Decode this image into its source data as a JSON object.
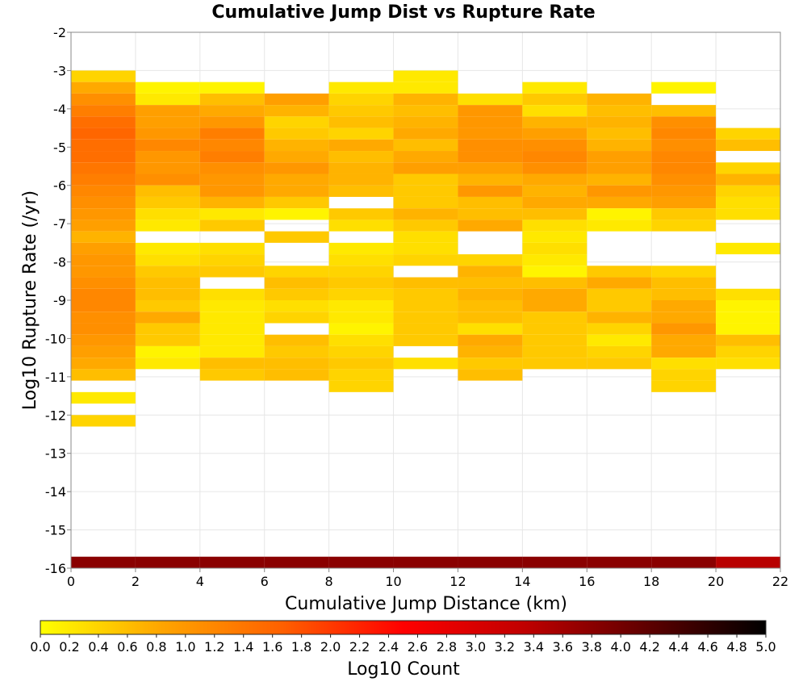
{
  "chart_data": {
    "type": "heatmap",
    "title": "Cumulative Jump Dist vs Rupture Rate",
    "xlabel": "Cumulative Jump Distance (km)",
    "ylabel": "Log10 Rupture Rate (/yr)",
    "colorbar_label": "Log10 Count",
    "xlim": [
      0,
      22
    ],
    "ylim": [
      -16,
      -2
    ],
    "x_ticks": [
      "0",
      "2",
      "4",
      "6",
      "8",
      "10",
      "12",
      "14",
      "16",
      "18",
      "20",
      "22"
    ],
    "y_ticks": [
      "-2",
      "-3",
      "-4",
      "-5",
      "-6",
      "-7",
      "-8",
      "-9",
      "-10",
      "-11",
      "-12",
      "-13",
      "-14",
      "-15",
      "-16"
    ],
    "colorbar_range": [
      0.0,
      5.0
    ],
    "colorbar_ticks": [
      "0.0",
      "0.2",
      "0.4",
      "0.6",
      "0.8",
      "1.0",
      "1.2",
      "1.4",
      "1.6",
      "1.8",
      "2.0",
      "2.2",
      "2.4",
      "2.6",
      "2.8",
      "3.0",
      "3.2",
      "3.4",
      "3.6",
      "3.8",
      "4.0",
      "4.2",
      "4.4",
      "4.6",
      "4.8",
      "5.0"
    ],
    "colorscale": [
      "#ffff00",
      "#ffa500",
      "#ff6000",
      "#ff0000",
      "#c00000",
      "#600000",
      "#000000"
    ],
    "x_bin_width": 2,
    "y_bin_height": 0.3,
    "grid": true,
    "columns": [
      {
        "x0": 0,
        "cells": [
          [
            -3.3,
            0.4
          ],
          [
            -3.6,
            0.8
          ],
          [
            -3.9,
            1.1
          ],
          [
            -4.2,
            1.3
          ],
          [
            -4.5,
            1.5
          ],
          [
            -4.8,
            1.6
          ],
          [
            -5.1,
            1.5
          ],
          [
            -5.4,
            1.5
          ],
          [
            -5.7,
            1.4
          ],
          [
            -6.0,
            1.3
          ],
          [
            -6.3,
            1.2
          ],
          [
            -6.6,
            1.1
          ],
          [
            -6.9,
            1.0
          ],
          [
            -7.2,
            0.9
          ],
          [
            -7.5,
            0.7
          ],
          [
            -7.8,
            0.9
          ],
          [
            -8.1,
            1.0
          ],
          [
            -8.4,
            1.0
          ],
          [
            -8.7,
            1.1
          ],
          [
            -9.0,
            1.2
          ],
          [
            -9.3,
            1.2
          ],
          [
            -9.6,
            1.1
          ],
          [
            -9.9,
            1.1
          ],
          [
            -10.2,
            1.0
          ],
          [
            -10.5,
            0.9
          ],
          [
            -10.8,
            0.8
          ],
          [
            -11.1,
            0.6
          ],
          [
            -11.7,
            0.2
          ],
          [
            -12.3,
            0.4
          ],
          [
            -16.0,
            3.8
          ]
        ]
      },
      {
        "x0": 2,
        "cells": [
          [
            -3.6,
            0.1
          ],
          [
            -3.9,
            0.2
          ],
          [
            -4.2,
            0.9
          ],
          [
            -4.5,
            0.9
          ],
          [
            -4.8,
            1.0
          ],
          [
            -5.1,
            1.2
          ],
          [
            -5.4,
            1.0
          ],
          [
            -5.7,
            1.0
          ],
          [
            -6.0,
            1.1
          ],
          [
            -6.3,
            0.6
          ],
          [
            -6.6,
            0.5
          ],
          [
            -6.9,
            0.3
          ],
          [
            -7.2,
            0.2
          ],
          [
            -7.8,
            0.2
          ],
          [
            -8.1,
            0.3
          ],
          [
            -8.4,
            0.5
          ],
          [
            -8.7,
            0.6
          ],
          [
            -9.0,
            0.6
          ],
          [
            -9.3,
            0.5
          ],
          [
            -9.6,
            0.8
          ],
          [
            -9.9,
            0.5
          ],
          [
            -10.2,
            0.5
          ],
          [
            -10.5,
            0.1
          ],
          [
            -10.8,
            0.2
          ],
          [
            -16.0,
            3.8
          ]
        ]
      },
      {
        "x0": 4,
        "cells": [
          [
            -3.6,
            0.1
          ],
          [
            -3.9,
            0.6
          ],
          [
            -4.2,
            0.8
          ],
          [
            -4.5,
            1.0
          ],
          [
            -4.8,
            1.3
          ],
          [
            -5.1,
            1.2
          ],
          [
            -5.4,
            1.3
          ],
          [
            -5.7,
            1.1
          ],
          [
            -6.0,
            1.0
          ],
          [
            -6.3,
            1.0
          ],
          [
            -6.6,
            0.7
          ],
          [
            -6.9,
            0.2
          ],
          [
            -7.2,
            0.5
          ],
          [
            -7.8,
            0.3
          ],
          [
            -8.1,
            0.4
          ],
          [
            -8.4,
            0.5
          ],
          [
            -9.0,
            0.3
          ],
          [
            -9.3,
            0.2
          ],
          [
            -9.6,
            0.2
          ],
          [
            -9.9,
            0.2
          ],
          [
            -10.2,
            0.2
          ],
          [
            -10.5,
            0.2
          ],
          [
            -10.8,
            0.6
          ],
          [
            -11.1,
            0.5
          ],
          [
            -16.0,
            3.8
          ]
        ]
      },
      {
        "x0": 6,
        "cells": [
          [
            -3.9,
            0.9
          ],
          [
            -4.2,
            0.7
          ],
          [
            -4.5,
            0.4
          ],
          [
            -4.8,
            0.5
          ],
          [
            -5.1,
            0.7
          ],
          [
            -5.4,
            0.8
          ],
          [
            -5.7,
            1.0
          ],
          [
            -6.0,
            0.8
          ],
          [
            -6.3,
            0.8
          ],
          [
            -6.6,
            0.5
          ],
          [
            -6.9,
            0.1
          ],
          [
            -7.5,
            0.5
          ],
          [
            -8.4,
            0.4
          ],
          [
            -8.7,
            0.6
          ],
          [
            -9.0,
            0.5
          ],
          [
            -9.3,
            0.3
          ],
          [
            -9.6,
            0.4
          ],
          [
            -10.2,
            0.6
          ],
          [
            -10.5,
            0.5
          ],
          [
            -10.8,
            0.6
          ],
          [
            -11.1,
            0.6
          ],
          [
            -16.0,
            3.8
          ]
        ]
      },
      {
        "x0": 8,
        "cells": [
          [
            -3.6,
            0.2
          ],
          [
            -3.9,
            0.4
          ],
          [
            -4.2,
            0.5
          ],
          [
            -4.5,
            0.6
          ],
          [
            -4.8,
            0.4
          ],
          [
            -5.1,
            0.8
          ],
          [
            -5.4,
            0.6
          ],
          [
            -5.7,
            0.7
          ],
          [
            -6.0,
            0.7
          ],
          [
            -6.3,
            0.6
          ],
          [
            -6.9,
            0.5
          ],
          [
            -7.2,
            0.3
          ],
          [
            -7.8,
            0.2
          ],
          [
            -8.1,
            0.3
          ],
          [
            -8.4,
            0.4
          ],
          [
            -8.7,
            0.5
          ],
          [
            -9.0,
            0.4
          ],
          [
            -9.3,
            0.2
          ],
          [
            -9.6,
            0.2
          ],
          [
            -9.9,
            0.1
          ],
          [
            -10.2,
            0.3
          ],
          [
            -10.5,
            0.4
          ],
          [
            -10.8,
            0.5
          ],
          [
            -11.1,
            0.4
          ],
          [
            -11.4,
            0.4
          ],
          [
            -16.0,
            3.8
          ]
        ]
      },
      {
        "x0": 10,
        "cells": [
          [
            -3.3,
            0.2
          ],
          [
            -3.6,
            0.2
          ],
          [
            -3.9,
            0.7
          ],
          [
            -4.2,
            0.6
          ],
          [
            -4.5,
            0.7
          ],
          [
            -4.8,
            0.8
          ],
          [
            -5.1,
            0.6
          ],
          [
            -5.4,
            0.8
          ],
          [
            -5.7,
            0.9
          ],
          [
            -6.0,
            0.5
          ],
          [
            -6.3,
            0.5
          ],
          [
            -6.6,
            0.5
          ],
          [
            -6.9,
            0.7
          ],
          [
            -7.2,
            0.5
          ],
          [
            -7.5,
            0.3
          ],
          [
            -7.8,
            0.3
          ],
          [
            -8.1,
            0.4
          ],
          [
            -8.7,
            0.6
          ],
          [
            -9.0,
            0.5
          ],
          [
            -9.3,
            0.5
          ],
          [
            -9.6,
            0.5
          ],
          [
            -9.9,
            0.5
          ],
          [
            -10.2,
            0.5
          ],
          [
            -10.8,
            0.3
          ],
          [
            -16.0,
            3.8
          ]
        ]
      },
      {
        "x0": 12,
        "cells": [
          [
            -3.9,
            0.3
          ],
          [
            -4.2,
            1.0
          ],
          [
            -4.5,
            1.0
          ],
          [
            -4.8,
            1.0
          ],
          [
            -5.1,
            1.1
          ],
          [
            -5.4,
            1.1
          ],
          [
            -5.7,
            0.9
          ],
          [
            -6.0,
            0.7
          ],
          [
            -6.3,
            1.0
          ],
          [
            -6.6,
            0.6
          ],
          [
            -6.9,
            0.6
          ],
          [
            -7.2,
            0.8
          ],
          [
            -8.1,
            0.4
          ],
          [
            -8.4,
            0.7
          ],
          [
            -8.7,
            0.6
          ],
          [
            -9.0,
            0.7
          ],
          [
            -9.3,
            0.6
          ],
          [
            -9.6,
            0.6
          ],
          [
            -9.9,
            0.3
          ],
          [
            -10.2,
            0.8
          ],
          [
            -10.5,
            0.7
          ],
          [
            -10.8,
            0.5
          ],
          [
            -11.1,
            0.6
          ],
          [
            -16.0,
            3.8
          ]
        ]
      },
      {
        "x0": 14,
        "cells": [
          [
            -3.6,
            0.2
          ],
          [
            -3.9,
            0.5
          ],
          [
            -4.2,
            0.3
          ],
          [
            -4.5,
            0.7
          ],
          [
            -4.8,
            0.9
          ],
          [
            -5.1,
            1.1
          ],
          [
            -5.4,
            1.2
          ],
          [
            -5.7,
            1.1
          ],
          [
            -6.0,
            0.8
          ],
          [
            -6.3,
            0.7
          ],
          [
            -6.6,
            0.8
          ],
          [
            -6.9,
            0.6
          ],
          [
            -7.2,
            0.3
          ],
          [
            -7.5,
            0.2
          ],
          [
            -7.8,
            0.3
          ],
          [
            -8.1,
            0.2
          ],
          [
            -8.4,
            0.1
          ],
          [
            -8.7,
            0.6
          ],
          [
            -9.0,
            0.8
          ],
          [
            -9.3,
            0.8
          ],
          [
            -9.6,
            0.5
          ],
          [
            -9.9,
            0.5
          ],
          [
            -10.2,
            0.5
          ],
          [
            -10.5,
            0.5
          ],
          [
            -10.8,
            0.5
          ],
          [
            -16.0,
            3.8
          ]
        ]
      },
      {
        "x0": 16,
        "cells": [
          [
            -3.9,
            0.7
          ],
          [
            -4.2,
            0.6
          ],
          [
            -4.5,
            0.7
          ],
          [
            -4.8,
            0.6
          ],
          [
            -5.1,
            0.7
          ],
          [
            -5.4,
            0.9
          ],
          [
            -5.7,
            0.9
          ],
          [
            -6.0,
            0.7
          ],
          [
            -6.3,
            1.0
          ],
          [
            -6.6,
            0.8
          ],
          [
            -6.9,
            0.1
          ],
          [
            -7.2,
            0.2
          ],
          [
            -8.4,
            0.5
          ],
          [
            -8.7,
            0.8
          ],
          [
            -9.0,
            0.5
          ],
          [
            -9.3,
            0.5
          ],
          [
            -9.6,
            0.7
          ],
          [
            -9.9,
            0.4
          ],
          [
            -10.2,
            0.2
          ],
          [
            -10.5,
            0.4
          ],
          [
            -10.8,
            0.5
          ],
          [
            -16.0,
            3.8
          ]
        ]
      },
      {
        "x0": 18,
        "cells": [
          [
            -3.6,
            0.1
          ],
          [
            -4.2,
            0.6
          ],
          [
            -4.5,
            1.1
          ],
          [
            -4.8,
            1.2
          ],
          [
            -5.1,
            1.1
          ],
          [
            -5.4,
            1.2
          ],
          [
            -5.7,
            1.2
          ],
          [
            -6.0,
            1.1
          ],
          [
            -6.3,
            1.0
          ],
          [
            -6.6,
            0.9
          ],
          [
            -6.9,
            0.5
          ],
          [
            -7.2,
            0.4
          ],
          [
            -8.4,
            0.4
          ],
          [
            -8.7,
            0.6
          ],
          [
            -9.0,
            0.6
          ],
          [
            -9.3,
            0.8
          ],
          [
            -9.6,
            0.8
          ],
          [
            -9.9,
            1.0
          ],
          [
            -10.2,
            0.8
          ],
          [
            -10.5,
            0.8
          ],
          [
            -10.8,
            0.3
          ],
          [
            -11.1,
            0.4
          ],
          [
            -11.4,
            0.4
          ],
          [
            -16.0,
            3.8
          ]
        ]
      },
      {
        "x0": 20,
        "cells": [
          [
            -4.8,
            0.4
          ],
          [
            -5.1,
            0.6
          ],
          [
            -5.7,
            0.4
          ],
          [
            -6.0,
            0.7
          ],
          [
            -6.3,
            0.4
          ],
          [
            -6.6,
            0.3
          ],
          [
            -6.9,
            0.3
          ],
          [
            -7.8,
            0.2
          ],
          [
            -9.0,
            0.3
          ],
          [
            -9.3,
            0.1
          ],
          [
            -9.6,
            0.1
          ],
          [
            -9.9,
            0.1
          ],
          [
            -10.2,
            0.6
          ],
          [
            -10.5,
            0.4
          ],
          [
            -10.8,
            0.3
          ],
          [
            -16.0,
            3.4
          ]
        ]
      }
    ]
  }
}
